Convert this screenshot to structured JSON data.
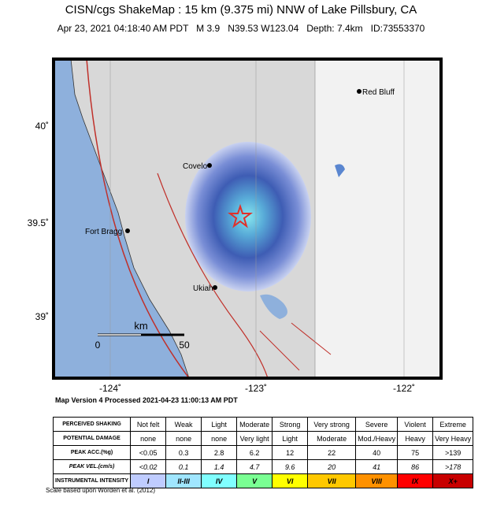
{
  "header": {
    "title": "CISN/cgs ShakeMap : 15 km (9.375 mi) NNW of Lake Pillsbury, CA",
    "subtitle": "Apr 23, 2021 04:18:40 AM PDT   M 3.9   N39.53 W123.04   Depth: 7.4km   ID:73553370"
  },
  "map": {
    "lat_labels": [
      "40˚",
      "39.5˚",
      "39˚"
    ],
    "lon_labels": [
      "-124˚",
      "-123˚",
      "-122˚"
    ],
    "places": [
      "Red Bluff",
      "Covelo",
      "Fort Bragg",
      "Ukiah"
    ],
    "scale": {
      "unit": "km",
      "start": "0",
      "end": "50"
    }
  },
  "footer": {
    "version": "Map Version 4 Processed 2021-04-23 11:00:13 AM PDT",
    "note": "Scale based upon Worden et al. (2012)"
  },
  "table": {
    "rows": [
      [
        "PERCEIVED SHAKING",
        "Not felt",
        "Weak",
        "Light",
        "Moderate",
        "Strong",
        "Very strong",
        "Severe",
        "Violent",
        "Extreme"
      ],
      [
        "POTENTIAL DAMAGE",
        "none",
        "none",
        "none",
        "Very light",
        "Light",
        "Moderate",
        "Mod./Heavy",
        "Heavy",
        "Very Heavy"
      ],
      [
        "PEAK ACC.(%g)",
        "<0.05",
        "0.3",
        "2.8",
        "6.2",
        "12",
        "22",
        "40",
        "75",
        ">139"
      ],
      [
        "PEAK VEL.(cm/s)",
        "<0.02",
        "0.1",
        "1.4",
        "4.7",
        "9.6",
        "20",
        "41",
        "86",
        ">178"
      ],
      [
        "INSTRUMENTAL INTENSITY",
        "I",
        "II-III",
        "IV",
        "V",
        "VI",
        "VII",
        "VIII",
        "IX",
        "X+"
      ]
    ]
  }
}
